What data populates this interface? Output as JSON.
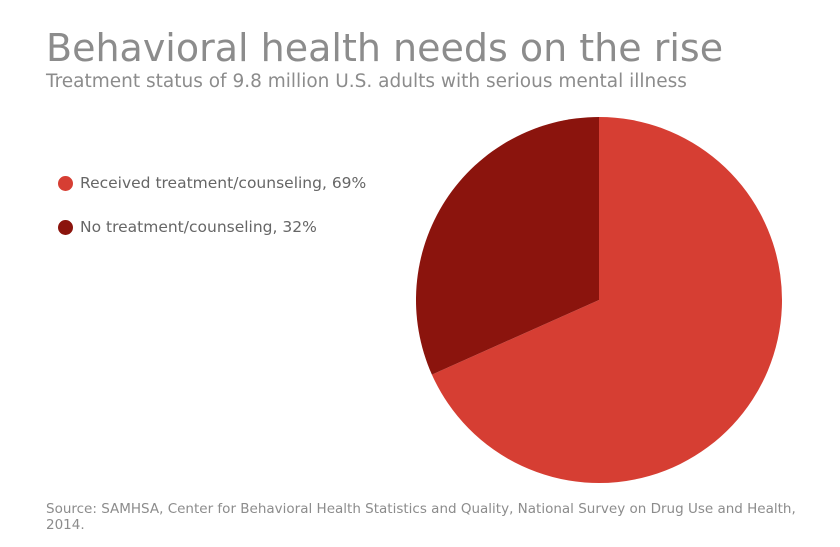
{
  "header": {
    "title": "Behavioral health needs on the rise",
    "subtitle": "Treatment status of 9.8 million U.S. adults with serious mental illness"
  },
  "legend": {
    "items": [
      {
        "label": "Received treatment/counseling, 69%",
        "color": "#d63e33"
      },
      {
        "label": "No treatment/counseling, 32%",
        "color": "#8b140d"
      }
    ]
  },
  "source": "Source: SAMHSA, Center for Behavioral Health Statistics and Quality, National Survey on Drug Use and Health, 2014.",
  "chart_data": {
    "type": "pie",
    "title": "Behavioral health needs on the rise",
    "subtitle": "Treatment status of 9.8 million U.S. adults with serious mental illness",
    "categories": [
      "Received treatment/counseling",
      "No treatment/counseling"
    ],
    "values": [
      69,
      32
    ],
    "colors": [
      "#d63e33",
      "#8b140d"
    ],
    "legend_position": "left"
  }
}
